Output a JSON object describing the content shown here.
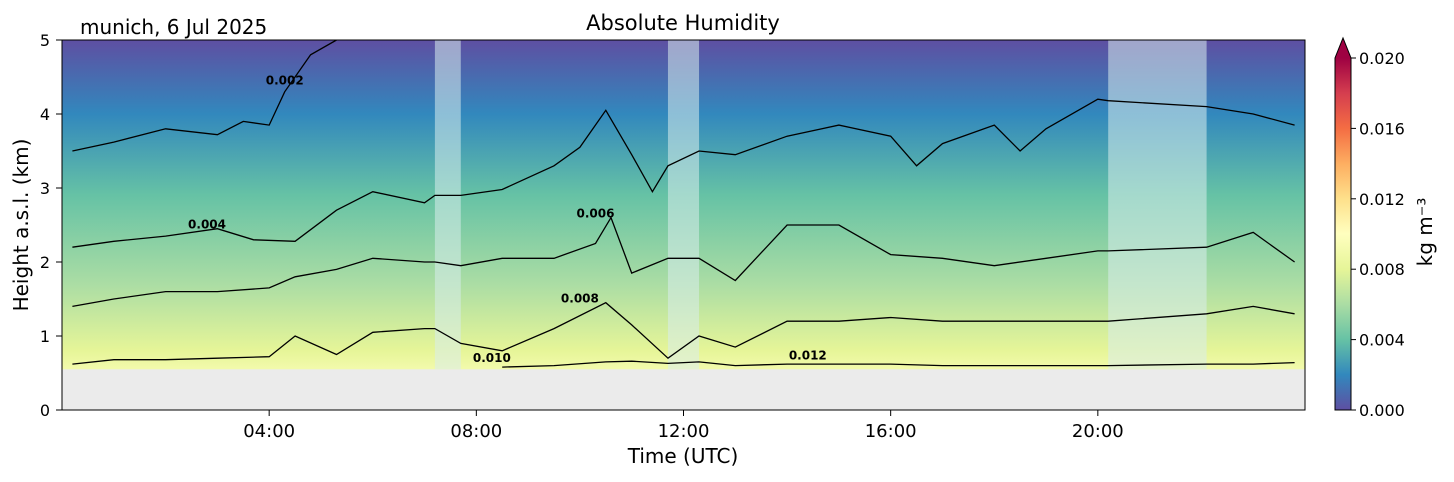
{
  "chart_data": {
    "type": "heatmap",
    "title": "Absolute Humidity",
    "location_date": "munich, 6 Jul 2025",
    "xlabel": "Time (UTC)",
    "ylabel": "Height a.s.l. (km)",
    "xlim": [
      0,
      24
    ],
    "ylim": [
      0,
      5
    ],
    "x_ticks": [
      {
        "value": 4,
        "label": "04:00"
      },
      {
        "value": 8,
        "label": "08:00"
      },
      {
        "value": 12,
        "label": "12:00"
      },
      {
        "value": 16,
        "label": "16:00"
      },
      {
        "value": 20,
        "label": "20:00"
      }
    ],
    "y_ticks": [
      {
        "value": 0,
        "label": "0"
      },
      {
        "value": 1,
        "label": "1"
      },
      {
        "value": 2,
        "label": "2"
      },
      {
        "value": 3,
        "label": "3"
      },
      {
        "value": 4,
        "label": "4"
      },
      {
        "value": 5,
        "label": "5"
      }
    ],
    "colorbar": {
      "label": "kg m⁻³",
      "range": [
        0.0,
        0.02
      ],
      "extend": "max",
      "ticks": [
        {
          "value": 0.0,
          "label": "0.000"
        },
        {
          "value": 0.004,
          "label": "0.004"
        },
        {
          "value": 0.008,
          "label": "0.008"
        },
        {
          "value": 0.012,
          "label": "0.012"
        },
        {
          "value": 0.016,
          "label": "0.016"
        },
        {
          "value": 0.02,
          "label": "0.020"
        }
      ],
      "colormap": "Spectral_r",
      "colors": [
        "#5e4fa2",
        "#3288bd",
        "#66c2a5",
        "#abdda4",
        "#e6f598",
        "#ffffbf",
        "#fee08b",
        "#fdae61",
        "#f46d43",
        "#d53e4f",
        "#9e0142"
      ]
    },
    "ground_height_km": 0.55,
    "no_data_bands_hours": [
      [
        7.2,
        7.7
      ],
      [
        11.7,
        12.3
      ],
      [
        20.2,
        22.1
      ]
    ],
    "contour_lines": [
      {
        "level": 0.002,
        "label": "0.002",
        "label_at": [
          4.3,
          4.4
        ],
        "points": [
          [
            0.2,
            3.5
          ],
          [
            1,
            3.62
          ],
          [
            2,
            3.8
          ],
          [
            3,
            3.72
          ],
          [
            3.5,
            3.9
          ],
          [
            4,
            3.85
          ],
          [
            4.3,
            4.3
          ],
          [
            4.8,
            4.8
          ],
          [
            5.3,
            5.0
          ]
        ]
      },
      {
        "level": 0.004,
        "label": "0.004",
        "label_at": [
          2.8,
          2.45
        ],
        "points": [
          [
            0.2,
            2.2
          ],
          [
            1,
            2.28
          ],
          [
            2,
            2.35
          ],
          [
            3,
            2.45
          ],
          [
            3.7,
            2.3
          ],
          [
            4.5,
            2.28
          ],
          [
            5.3,
            2.7
          ],
          [
            6,
            2.95
          ],
          [
            7,
            2.8
          ],
          [
            7.2,
            2.9
          ],
          [
            7.7,
            2.9
          ],
          [
            8.5,
            2.98
          ],
          [
            9.5,
            3.3
          ],
          [
            10,
            3.55
          ],
          [
            10.5,
            4.05
          ],
          [
            11,
            3.45
          ],
          [
            11.4,
            2.95
          ],
          [
            11.7,
            3.3
          ],
          [
            12.3,
            3.5
          ],
          [
            13,
            3.45
          ],
          [
            14,
            3.7
          ],
          [
            15,
            3.85
          ],
          [
            16,
            3.7
          ],
          [
            16.5,
            3.3
          ],
          [
            17,
            3.6
          ],
          [
            18,
            3.85
          ],
          [
            18.5,
            3.5
          ],
          [
            19,
            3.8
          ],
          [
            20,
            4.2
          ],
          [
            20.2,
            4.18
          ],
          [
            22.1,
            4.1
          ],
          [
            23,
            4.0
          ],
          [
            23.8,
            3.85
          ]
        ]
      },
      {
        "level": 0.006,
        "label": "0.006",
        "label_at": [
          10.3,
          2.6
        ],
        "points": [
          [
            0.2,
            1.4
          ],
          [
            1,
            1.5
          ],
          [
            2,
            1.6
          ],
          [
            3,
            1.6
          ],
          [
            4,
            1.65
          ],
          [
            4.5,
            1.8
          ],
          [
            5.3,
            1.9
          ],
          [
            6,
            2.05
          ],
          [
            7,
            2.0
          ],
          [
            7.2,
            2.0
          ],
          [
            7.7,
            1.95
          ],
          [
            8.5,
            2.05
          ],
          [
            9.5,
            2.05
          ],
          [
            10.3,
            2.25
          ],
          [
            10.6,
            2.6
          ],
          [
            11,
            1.85
          ],
          [
            11.7,
            2.05
          ],
          [
            12.3,
            2.05
          ],
          [
            13,
            1.75
          ],
          [
            14,
            2.5
          ],
          [
            15,
            2.5
          ],
          [
            16,
            2.1
          ],
          [
            17,
            2.05
          ],
          [
            18,
            1.95
          ],
          [
            19,
            2.05
          ],
          [
            20,
            2.15
          ],
          [
            20.2,
            2.15
          ],
          [
            22.1,
            2.2
          ],
          [
            23,
            2.4
          ],
          [
            23.8,
            2.0
          ]
        ]
      },
      {
        "level": 0.008,
        "label": "0.008",
        "label_at": [
          10.0,
          1.45
        ],
        "points": [
          [
            0.2,
            0.62
          ],
          [
            1,
            0.68
          ],
          [
            2,
            0.68
          ],
          [
            3,
            0.7
          ],
          [
            4,
            0.72
          ],
          [
            4.5,
            1.0
          ],
          [
            5.3,
            0.75
          ],
          [
            6,
            1.05
          ],
          [
            7,
            1.1
          ],
          [
            7.2,
            1.1
          ],
          [
            7.7,
            0.9
          ],
          [
            8.5,
            0.8
          ],
          [
            9.5,
            1.1
          ],
          [
            10.5,
            1.45
          ],
          [
            11,
            1.15
          ],
          [
            11.7,
            0.7
          ],
          [
            12.3,
            1.0
          ],
          [
            13,
            0.85
          ],
          [
            14,
            1.2
          ],
          [
            15,
            1.2
          ],
          [
            16,
            1.25
          ],
          [
            17,
            1.2
          ],
          [
            18,
            1.2
          ],
          [
            19,
            1.2
          ],
          [
            20,
            1.2
          ],
          [
            20.2,
            1.2
          ],
          [
            22.1,
            1.3
          ],
          [
            23,
            1.4
          ],
          [
            23.8,
            1.3
          ]
        ]
      },
      {
        "level": 0.01,
        "label": "0.010",
        "label_at": [
          8.3,
          0.65
        ],
        "points": [
          [
            8.5,
            0.58
          ],
          [
            9.5,
            0.6
          ],
          [
            10.5,
            0.65
          ],
          [
            11,
            0.66
          ],
          [
            11.7,
            0.63
          ],
          [
            12.3,
            0.65
          ],
          [
            13,
            0.6
          ],
          [
            14,
            0.62
          ],
          [
            15,
            0.62
          ],
          [
            16,
            0.62
          ],
          [
            17,
            0.6
          ],
          [
            18,
            0.6
          ],
          [
            19,
            0.6
          ],
          [
            20,
            0.6
          ],
          [
            20.2,
            0.6
          ],
          [
            22.1,
            0.62
          ],
          [
            23,
            0.62
          ],
          [
            23.8,
            0.64
          ]
        ]
      },
      {
        "level": 0.012,
        "label": "0.012",
        "label_at": [
          14.4,
          0.68
        ],
        "points": []
      }
    ]
  }
}
